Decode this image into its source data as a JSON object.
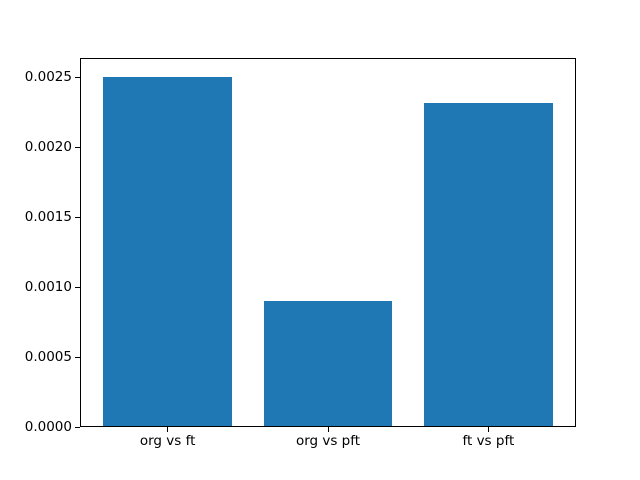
{
  "chart_data": {
    "type": "bar",
    "title": "",
    "xlabel": "",
    "ylabel": "",
    "categories": [
      "org vs ft",
      "org vs pft",
      "ft vs pft"
    ],
    "values": [
      0.00251,
      0.0009,
      0.00232
    ],
    "bar_color": "#1f77b4",
    "bar_width_fraction": 0.8,
    "xlim": [
      -0.54,
      2.54
    ],
    "ylim": [
      0,
      0.002636
    ],
    "yticks": [
      {
        "label": "0.0000",
        "value": 0.0
      },
      {
        "label": "0.0005",
        "value": 0.0005
      },
      {
        "label": "0.0010",
        "value": 0.001
      },
      {
        "label": "0.0015",
        "value": 0.0015
      },
      {
        "label": "0.0020",
        "value": 0.002
      },
      {
        "label": "0.0025",
        "value": 0.0025
      }
    ],
    "grid": false,
    "legend": null
  },
  "figure": {
    "background": "#ffffff",
    "spine_color": "#000000",
    "text_color": "#000000"
  }
}
